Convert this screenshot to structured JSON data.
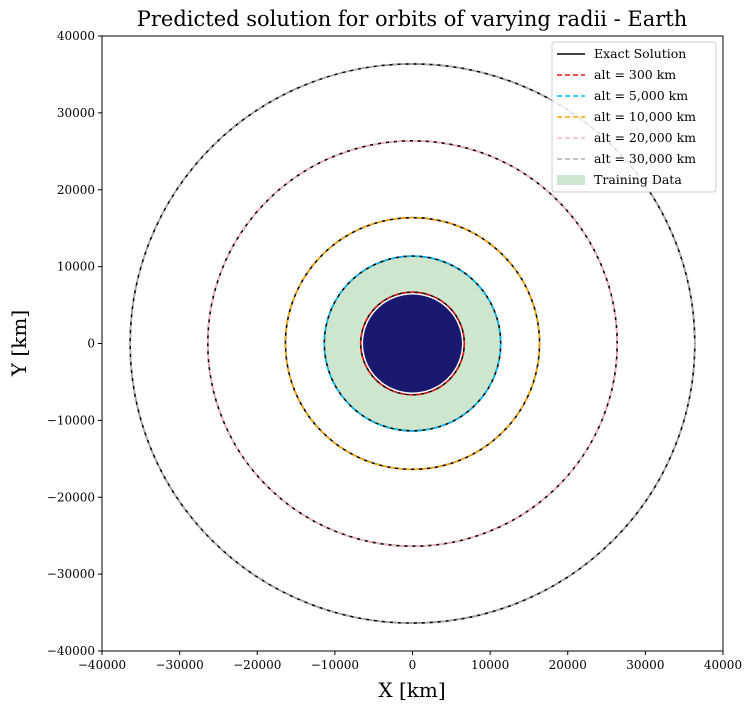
{
  "chart_data": {
    "type": "line",
    "title": "Predicted solution for orbits of varying radii - Earth",
    "xlabel": "X [km]",
    "ylabel": "Y [km]",
    "xlim": [
      -40000,
      40000
    ],
    "ylim": [
      -40000,
      40000
    ],
    "xticks": [
      "−40000",
      "−30000",
      "−20000",
      "−10000",
      "0",
      "10000",
      "20000",
      "30000",
      "40000"
    ],
    "yticks": [
      "−40000",
      "−30000",
      "−20000",
      "−10000",
      "0",
      "10000",
      "20000",
      "30000",
      "40000"
    ],
    "grid": false,
    "legend_position": "top-right",
    "earth_radius_km": 6371,
    "earth_color": "#191970",
    "training_band": {
      "name": "Training Data",
      "inner_radius_km": 6671,
      "outer_radius_km": 11371,
      "color": "#cde6cd"
    },
    "series": [
      {
        "name": "Exact Solution",
        "style": "solid",
        "color": "#000000",
        "radii_km": [
          6671,
          11371,
          16371,
          26371,
          36371
        ]
      },
      {
        "name": "alt = 300 km",
        "style": "dashed",
        "color": "#e41a1c",
        "radius_km": 6671
      },
      {
        "name": "alt = 5,000 km",
        "style": "dashed",
        "color": "#00bfff",
        "radius_km": 11371
      },
      {
        "name": "alt = 10,000 km",
        "style": "dashed",
        "color": "#ffa500",
        "radius_km": 16371
      },
      {
        "name": "alt = 20,000 km",
        "style": "dashed",
        "color": "#ffb6c1",
        "radius_km": 26371
      },
      {
        "name": "alt = 30,000 km",
        "style": "dashed",
        "color": "#b0b0b0",
        "radius_km": 36371
      }
    ]
  }
}
